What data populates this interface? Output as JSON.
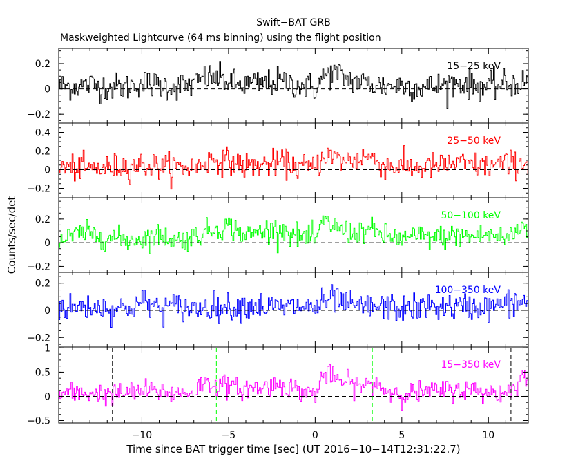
{
  "chart_data": {
    "type": "line",
    "title": "Swift−BAT GRB",
    "subtitle": "Maskweighted Lightcurve (64 ms binning) using the flight position",
    "xlabel": "Time since BAT trigger time [sec] (UT 2016−10−14T12:31:22.7)",
    "ylabel": "Counts/sec/det",
    "xlim": [
      -14.8,
      12.3
    ],
    "x_ticks": [
      -10,
      -5,
      0,
      5,
      10
    ],
    "x_tick_labels": [
      "−10",
      "−5",
      "0",
      "5",
      "10"
    ],
    "bin_seconds": 0.064,
    "series": [
      {
        "name": "15−25 keV",
        "color": "#000000",
        "ylim": [
          -0.27,
          0.32
        ],
        "y_ticks": [
          -0.2,
          0,
          0.2
        ],
        "y_tick_labels": [
          "−0.2",
          "0",
          "0.2"
        ],
        "noise": 0.055,
        "profile": [
          [
            -14.8,
            0.02
          ],
          [
            -13,
            0.03
          ],
          [
            -11,
            0.01
          ],
          [
            -10,
            0.05
          ],
          [
            -8.5,
            0.02
          ],
          [
            -7,
            0.03
          ],
          [
            -6.5,
            0.09
          ],
          [
            -5.5,
            0.08
          ],
          [
            -4.5,
            0.03
          ],
          [
            -3,
            0.04
          ],
          [
            -2,
            0.06
          ],
          [
            -1,
            0.03
          ],
          [
            0,
            0.01
          ],
          [
            0.5,
            0.1
          ],
          [
            1,
            0.13
          ],
          [
            2,
            0.07
          ],
          [
            3,
            0.04
          ],
          [
            4,
            0.02
          ],
          [
            5,
            0.03
          ],
          [
            6,
            0.01
          ],
          [
            7,
            0.02
          ],
          [
            8,
            0.05
          ],
          [
            9,
            0.03
          ],
          [
            10,
            0.02
          ],
          [
            11,
            0.04
          ],
          [
            12.3,
            0.05
          ]
        ]
      },
      {
        "name": "25−50 keV",
        "color": "#ff0000",
        "ylim": [
          -0.3,
          0.5
        ],
        "y_ticks": [
          -0.2,
          0,
          0.2,
          0.4
        ],
        "y_tick_labels": [
          "−0.2",
          "0",
          "0.2",
          "0.4"
        ],
        "noise": 0.07,
        "profile": [
          [
            -14.8,
            0.03
          ],
          [
            -13,
            0.01
          ],
          [
            -12,
            0.02
          ],
          [
            -11,
            0.04
          ],
          [
            -10,
            0.05
          ],
          [
            -8.5,
            0.03
          ],
          [
            -7,
            0.02
          ],
          [
            -6,
            0.11
          ],
          [
            -5,
            0.09
          ],
          [
            -4,
            0.04
          ],
          [
            -3,
            0.05
          ],
          [
            -2,
            0.08
          ],
          [
            -1,
            0.03
          ],
          [
            0,
            0.02
          ],
          [
            0.5,
            0.18
          ],
          [
            1,
            0.12
          ],
          [
            2,
            0.09
          ],
          [
            3,
            0.15
          ],
          [
            4,
            0.04
          ],
          [
            5,
            0.03
          ],
          [
            6,
            0.02
          ],
          [
            7,
            0.04
          ],
          [
            8,
            0.06
          ],
          [
            9,
            0.05
          ],
          [
            10,
            0.04
          ],
          [
            11,
            0.06
          ],
          [
            12.3,
            0.07
          ]
        ]
      },
      {
        "name": "50−100 keV",
        "color": "#00ff00",
        "ylim": [
          -0.25,
          0.38
        ],
        "y_ticks": [
          -0.2,
          0,
          0.2
        ],
        "y_tick_labels": [
          "−0.2",
          "0",
          "0.2"
        ],
        "noise": 0.05,
        "profile": [
          [
            -14.8,
            0.01
          ],
          [
            -13.5,
            0.08
          ],
          [
            -12,
            0.05
          ],
          [
            -11,
            0.02
          ],
          [
            -10,
            0.04
          ],
          [
            -9,
            0.06
          ],
          [
            -8,
            0.02
          ],
          [
            -7,
            0.05
          ],
          [
            -6,
            0.11
          ],
          [
            -5,
            0.14
          ],
          [
            -4,
            0.06
          ],
          [
            -3,
            0.1
          ],
          [
            -2,
            0.12
          ],
          [
            -1,
            0.05
          ],
          [
            0,
            0.03
          ],
          [
            0.5,
            0.18
          ],
          [
            1,
            0.14
          ],
          [
            2,
            0.08
          ],
          [
            3,
            0.11
          ],
          [
            4,
            0.06
          ],
          [
            5,
            0.03
          ],
          [
            6,
            0.05
          ],
          [
            7,
            0.04
          ],
          [
            8,
            0.06
          ],
          [
            9,
            0.05
          ],
          [
            10,
            0.07
          ],
          [
            11,
            0.03
          ],
          [
            12,
            0.15
          ],
          [
            12.3,
            0.12
          ]
        ]
      },
      {
        "name": "100−350 keV",
        "color": "#0000ff",
        "ylim": [
          -0.27,
          0.28
        ],
        "y_ticks": [
          -0.2,
          0,
          0.2
        ],
        "y_tick_labels": [
          "−0.2",
          "0",
          "0.2"
        ],
        "noise": 0.05,
        "profile": [
          [
            -14.8,
            0.01
          ],
          [
            -13,
            0.03
          ],
          [
            -12,
            0.02
          ],
          [
            -11,
            0.01
          ],
          [
            -10,
            0.06
          ],
          [
            -9,
            0.02
          ],
          [
            -8,
            0.03
          ],
          [
            -7,
            0.01
          ],
          [
            -6,
            0.03
          ],
          [
            -5,
            0.02
          ],
          [
            -4,
            0.04
          ],
          [
            -3,
            0.03
          ],
          [
            -2,
            0.02
          ],
          [
            -1,
            0.03
          ],
          [
            0,
            0.02
          ],
          [
            0.5,
            0.06
          ],
          [
            1,
            0.09
          ],
          [
            2,
            0.03
          ],
          [
            3,
            0.02
          ],
          [
            4,
            0.03
          ],
          [
            5,
            0.01
          ],
          [
            6,
            0.02
          ],
          [
            7,
            0.03
          ],
          [
            8,
            0.02
          ],
          [
            9,
            0.03
          ],
          [
            10,
            0.02
          ],
          [
            11,
            0.05
          ],
          [
            12.3,
            0.06
          ]
        ]
      },
      {
        "name": "15−350 keV",
        "color": "#ff00ff",
        "ylim": [
          -0.55,
          1.02
        ],
        "y_ticks": [
          -0.5,
          0,
          0.5,
          1
        ],
        "y_tick_labels": [
          "−0.5",
          "0",
          "0.5",
          "1"
        ],
        "noise": 0.11,
        "profile": [
          [
            -14.8,
            0.05
          ],
          [
            -13,
            0.07
          ],
          [
            -12,
            0.04
          ],
          [
            -11,
            0.06
          ],
          [
            -10,
            0.12
          ],
          [
            -9,
            0.09
          ],
          [
            -8,
            0.06
          ],
          [
            -7,
            0.1
          ],
          [
            -6.5,
            0.28
          ],
          [
            -5.5,
            0.24
          ],
          [
            -4.5,
            0.15
          ],
          [
            -3,
            0.18
          ],
          [
            -2,
            0.25
          ],
          [
            -1,
            0.12
          ],
          [
            0,
            0.06
          ],
          [
            0.5,
            0.5
          ],
          [
            1,
            0.38
          ],
          [
            2,
            0.25
          ],
          [
            3,
            0.2
          ],
          [
            3.5,
            0.28
          ],
          [
            4,
            0.12
          ],
          [
            5,
            0.06
          ],
          [
            6,
            0.08
          ],
          [
            7,
            0.1
          ],
          [
            8,
            0.15
          ],
          [
            9,
            0.12
          ],
          [
            10,
            0.09
          ],
          [
            11,
            0.05
          ],
          [
            12,
            0.45
          ],
          [
            12.3,
            0.3
          ]
        ]
      }
    ],
    "markers": [
      {
        "x": -11.7,
        "color": "#000000",
        "style": "dashed"
      },
      {
        "x": -5.7,
        "color": "#00ff00",
        "style": "dashed"
      },
      {
        "x": 3.3,
        "color": "#00ff00",
        "style": "dashed"
      },
      {
        "x": 11.3,
        "color": "#000000",
        "style": "dashed"
      }
    ],
    "zero_line": "dashed",
    "grid": false,
    "legend": "inside top-right of each panel"
  }
}
